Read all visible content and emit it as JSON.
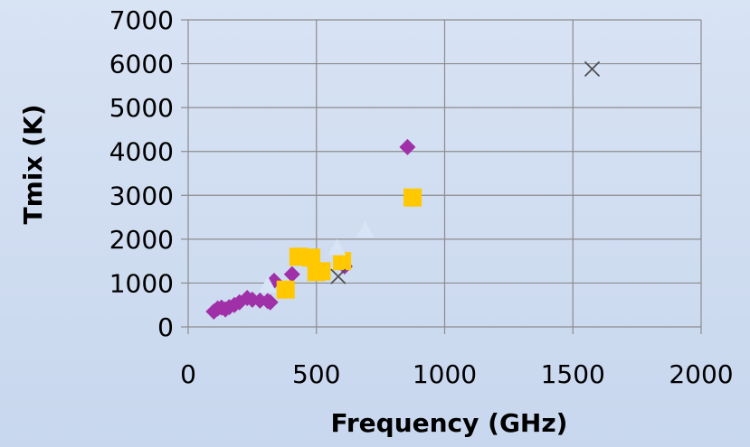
{
  "chart_data": {
    "type": "scatter",
    "title": "",
    "xlabel": "Frequency (GHz)",
    "ylabel": "Tmix (K)",
    "xlim": [
      0,
      2000
    ],
    "ylim": [
      0,
      7000
    ],
    "x_ticks": [
      "0",
      "500",
      "1000",
      "1500",
      "2000"
    ],
    "y_ticks": [
      "0",
      "1000",
      "2000",
      "3000",
      "4000",
      "5000",
      "6000",
      "7000"
    ],
    "grid": true,
    "legend": "none",
    "series": [
      {
        "marker": "diamond",
        "color": "#a030a8",
        "points": [
          [
            100,
            350
          ],
          [
            115,
            420
          ],
          [
            130,
            440
          ],
          [
            145,
            400
          ],
          [
            160,
            450
          ],
          [
            180,
            500
          ],
          [
            200,
            560
          ],
          [
            230,
            660
          ],
          [
            250,
            620
          ],
          [
            280,
            600
          ],
          [
            310,
            590
          ],
          [
            320,
            560
          ],
          [
            335,
            1050
          ],
          [
            405,
            1200
          ],
          [
            610,
            1380
          ],
          [
            855,
            4100
          ]
        ]
      },
      {
        "marker": "square",
        "color": "#ffc800",
        "points": [
          [
            380,
            850
          ],
          [
            430,
            1600
          ],
          [
            480,
            1580
          ],
          [
            500,
            1250
          ],
          [
            520,
            1270
          ],
          [
            600,
            1500
          ],
          [
            875,
            2950
          ]
        ]
      },
      {
        "marker": "triangle",
        "color": "#d6e4f6",
        "points": [
          [
            310,
            950
          ],
          [
            580,
            1800
          ],
          [
            690,
            2200
          ]
        ]
      },
      {
        "marker": "x",
        "color": "#505050",
        "points": [
          [
            585,
            1150
          ],
          [
            1575,
            5880
          ]
        ]
      }
    ]
  }
}
